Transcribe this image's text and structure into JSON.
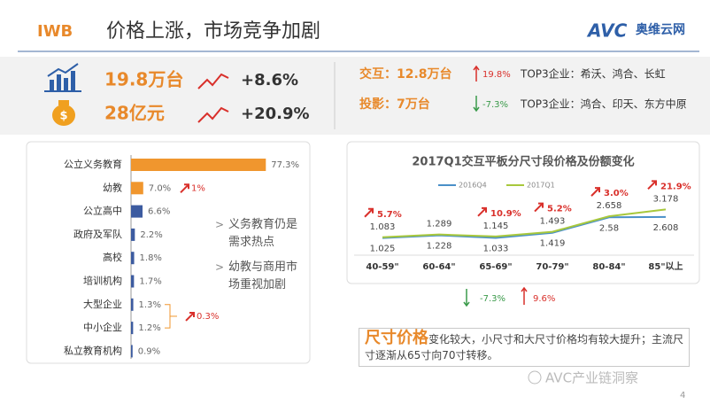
{
  "header": {
    "tag": "IWB",
    "title": "价格上涨，市场竞争加剧",
    "logo": "AVC",
    "logo_text": "奥维云网"
  },
  "summary": {
    "volume": "19.8万台",
    "volume_change": "+8.6%",
    "revenue": "28亿元",
    "revenue_change": "+20.9%"
  },
  "segments": [
    {
      "name": "交互：12.8万台",
      "change": "19.8%",
      "top3": "TOP3企业：希沃、鸿合、长虹"
    },
    {
      "name": "投影：7万台",
      "change": "-7.3%",
      "top3": "TOP3企业：鸿合、印天、东方中原"
    }
  ],
  "chart_data": [
    {
      "type": "bar",
      "orientation": "horizontal",
      "categories": [
        "公立义务教育",
        "幼教",
        "公立高中",
        "政府及军队",
        "高校",
        "培训机构",
        "大型企业",
        "中小企业",
        "私立教育机构"
      ],
      "values": [
        77.3,
        7.0,
        6.6,
        2.2,
        1.8,
        1.7,
        1.3,
        1.2,
        0.9
      ],
      "value_labels": [
        "77.3%",
        "7.0%",
        "6.6%",
        "2.2%",
        "1.8%",
        "1.7%",
        "1.3%",
        "1.2%",
        "0.9%"
      ],
      "colors": [
        "#f0962e",
        "#f0962e",
        "#3c5ba0",
        "#3c5ba0",
        "#3c5ba0",
        "#3c5ba0",
        "#3c5ba0",
        "#3c5ba0",
        "#3c5ba0"
      ],
      "annotations": [
        "1%",
        "0.3%"
      ]
    },
    {
      "type": "line",
      "title": "2017Q1交互平板分尺寸段价格及份额变化",
      "categories": [
        "40-59\"",
        "60-64\"",
        "65-69\"",
        "70-79\"",
        "80-84\"",
        "85\"以上"
      ],
      "series": [
        {
          "name": "2016Q4",
          "color": "#4a90c8",
          "values": [
            1.025,
            1.228,
            1.033,
            1.419,
            2.58,
            2.608
          ]
        },
        {
          "name": "2017Q1",
          "color": "#a8c83c",
          "values": [
            1.083,
            1.289,
            1.145,
            1.493,
            2.658,
            3.178
          ]
        }
      ],
      "changes": [
        "5.7%",
        null,
        "10.9%",
        "5.2%",
        "3.0%",
        "21.9%"
      ]
    }
  ],
  "notes": [
    "义务教育仍是需求热点",
    "幼教与商用市场重视加剧"
  ],
  "share_changes": [
    "-7.3%",
    "9.6%"
  ],
  "callout": {
    "title": "尺寸价格",
    "text": "变化较大，小尺寸和大尺寸价格均有较大提升；主流尺寸逐渐从65寸向70寸转移。"
  },
  "watermark": "AVC产业链洞察",
  "page": "4"
}
